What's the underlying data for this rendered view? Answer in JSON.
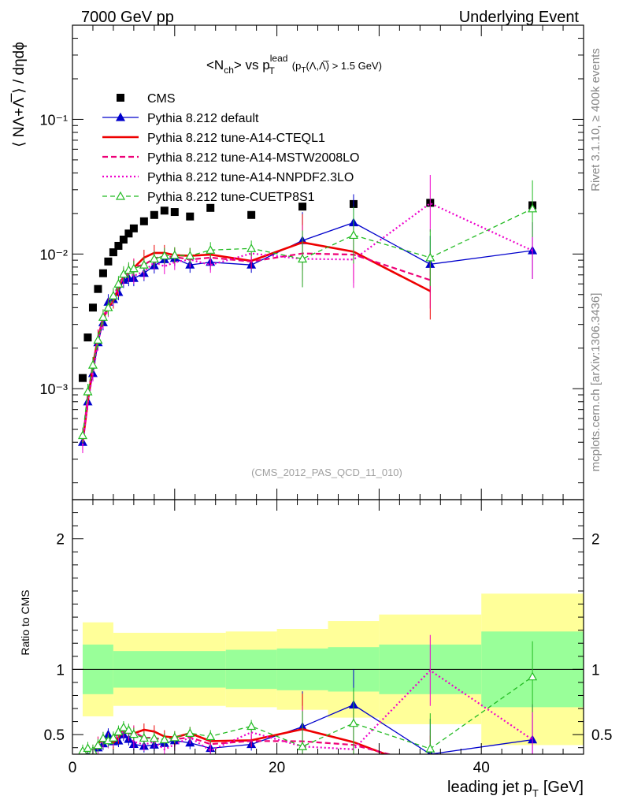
{
  "header": {
    "left": "7000 GeV pp",
    "right": "Underlying Event"
  },
  "side": {
    "rivet": "Rivet 3.1.10, ≥ 400k events",
    "mcplots": "mcplots.cern.ch [arXiv:1306.3436]"
  },
  "reference": "(CMS_2012_PAS_QCD_11_010)",
  "title": {
    "text": "<N",
    "sub1": "ch",
    "mid": "> vs p",
    "sup": "lead",
    "sub2": "T",
    "cut": "(p",
    "cut_sub": "T",
    "cut_rest": "(Λ,Λ̅) > 1.5 GeV)"
  },
  "ylabel_main": "⟨ NΛ+Λ̅ ⟩ / dηdϕ",
  "ylabel_ratio": "Ratio to CMS",
  "xlabel": "leading jet p",
  "xlabel_sub": "T",
  "xlabel_unit": "[GeV]",
  "colors": {
    "cms": "#000000",
    "default": "#0000cc",
    "cteql1": "#ee0000",
    "mstw": "#ee0077",
    "nnpdf": "#ee00cc",
    "cuetp8s1": "#22bb22",
    "band_inner": "#99ff99",
    "band_outer": "#ffff99"
  },
  "chart_data": {
    "type": "line",
    "x_range": [
      0,
      50
    ],
    "y_range_main": [
      0.00015,
      0.5
    ],
    "y_scale_main": "log",
    "y_range_ratio": [
      0.35,
      2.3
    ],
    "x_ticks": [
      "0",
      "20",
      "40"
    ],
    "y_ticks_main": [
      "10⁻³",
      "10⁻²",
      "10⁻¹"
    ],
    "y_ticks_ratio": [
      "0.5",
      "1",
      "2"
    ],
    "legend_position": "top-left",
    "series": [
      {
        "name": "CMS",
        "style": "data",
        "x": [
          1.0,
          1.5,
          2.0,
          2.5,
          3.0,
          3.5,
          4.0,
          4.5,
          5.0,
          5.5,
          6.0,
          7.0,
          8.0,
          9.0,
          10.0,
          11.5,
          13.5,
          17.5,
          22.5,
          27.5,
          35.0,
          45.0
        ],
        "y": [
          0.0012,
          0.0024,
          0.004,
          0.0055,
          0.0072,
          0.0088,
          0.0103,
          0.0115,
          0.0128,
          0.0142,
          0.0155,
          0.0175,
          0.0195,
          0.021,
          0.0205,
          0.019,
          0.022,
          0.0195,
          0.0225,
          0.0235,
          0.024,
          0.023
        ]
      },
      {
        "name": "Pythia 8.212 default",
        "x": [
          1.0,
          1.5,
          2.0,
          2.5,
          3.0,
          3.5,
          4.0,
          4.5,
          5.0,
          5.5,
          6.0,
          7.0,
          8.0,
          9.0,
          10.0,
          11.5,
          13.5,
          17.5,
          22.5,
          27.5,
          35.0,
          45.0
        ],
        "y": [
          0.0004,
          0.0008,
          0.0013,
          0.0022,
          0.0031,
          0.0044,
          0.0046,
          0.0052,
          0.0064,
          0.0066,
          0.0066,
          0.0072,
          0.0082,
          0.0091,
          0.0093,
          0.0083,
          0.0087,
          0.0083,
          0.0126,
          0.0171,
          0.0084,
          0.0106
        ]
      },
      {
        "name": "Pythia 8.212 tune-A14-CTEQL1",
        "x": [
          1.0,
          1.5,
          2.0,
          2.5,
          3.0,
          3.5,
          4.0,
          4.5,
          5.0,
          5.5,
          6.0,
          7.0,
          8.0,
          9.0,
          10.0,
          11.5,
          13.5,
          17.5,
          22.5,
          27.5,
          35.0
        ],
        "y": [
          0.0004,
          0.0008,
          0.0015,
          0.0024,
          0.0033,
          0.004,
          0.0045,
          0.0055,
          0.0069,
          0.0074,
          0.0079,
          0.0094,
          0.0102,
          0.0102,
          0.0098,
          0.0097,
          0.0099,
          0.0089,
          0.0122,
          0.0104,
          0.0053
        ]
      },
      {
        "name": "Pythia 8.212 tune-A14-MSTW2008LO",
        "x": [
          1.0,
          1.5,
          2.0,
          2.5,
          3.0,
          3.5,
          4.0,
          4.5,
          5.0,
          5.5,
          6.0,
          7.0,
          8.0,
          9.0,
          10.0,
          11.5,
          13.5,
          17.5,
          22.5,
          27.5,
          35.0
        ],
        "y": [
          0.0004,
          0.0009,
          0.0015,
          0.0024,
          0.0034,
          0.0041,
          0.0048,
          0.0058,
          0.0068,
          0.0071,
          0.0081,
          0.0083,
          0.0093,
          0.0096,
          0.0095,
          0.0091,
          0.0094,
          0.0088,
          0.0101,
          0.0099,
          0.0064
        ]
      },
      {
        "name": "Pythia 8.212 tune-A14-NNPDF2.3LO",
        "x": [
          1.0,
          1.5,
          2.0,
          2.5,
          3.0,
          3.5,
          4.0,
          4.5,
          5.0,
          5.5,
          6.0,
          7.0,
          8.0,
          9.0,
          10.0,
          11.5,
          13.5,
          17.5,
          22.5,
          27.5,
          35.0,
          45.0
        ],
        "y": [
          0.00038,
          0.0008,
          0.0013,
          0.0022,
          0.0032,
          0.0039,
          0.0047,
          0.0057,
          0.0067,
          0.0073,
          0.0069,
          0.0074,
          0.0087,
          0.0081,
          0.0087,
          0.0091,
          0.0083,
          0.0101,
          0.0092,
          0.0091,
          0.0238,
          0.0106
        ]
      },
      {
        "name": "Pythia 8.212 tune-CUETP8S1",
        "x": [
          1.0,
          1.5,
          2.0,
          2.5,
          3.0,
          3.5,
          4.0,
          4.5,
          5.0,
          5.5,
          6.0,
          7.0,
          8.0,
          9.0,
          10.0,
          11.5,
          13.5,
          17.5,
          22.5,
          27.5,
          35.0,
          45.0
        ],
        "y": [
          0.00045,
          0.00095,
          0.0015,
          0.0023,
          0.0034,
          0.004,
          0.0049,
          0.006,
          0.0071,
          0.0076,
          0.0078,
          0.0083,
          0.0092,
          0.0097,
          0.0098,
          0.0097,
          0.0107,
          0.011,
          0.0092,
          0.0138,
          0.0094,
          0.0217
        ]
      }
    ],
    "ratio_band": {
      "x_edges": [
        1,
        4,
        15,
        20,
        25,
        30,
        40,
        50
      ],
      "inner": [
        0.19,
        0.14,
        0.15,
        0.16,
        0.17,
        0.19,
        0.29
      ],
      "outer": [
        0.36,
        0.28,
        0.29,
        0.31,
        0.37,
        0.42,
        0.58
      ]
    }
  }
}
